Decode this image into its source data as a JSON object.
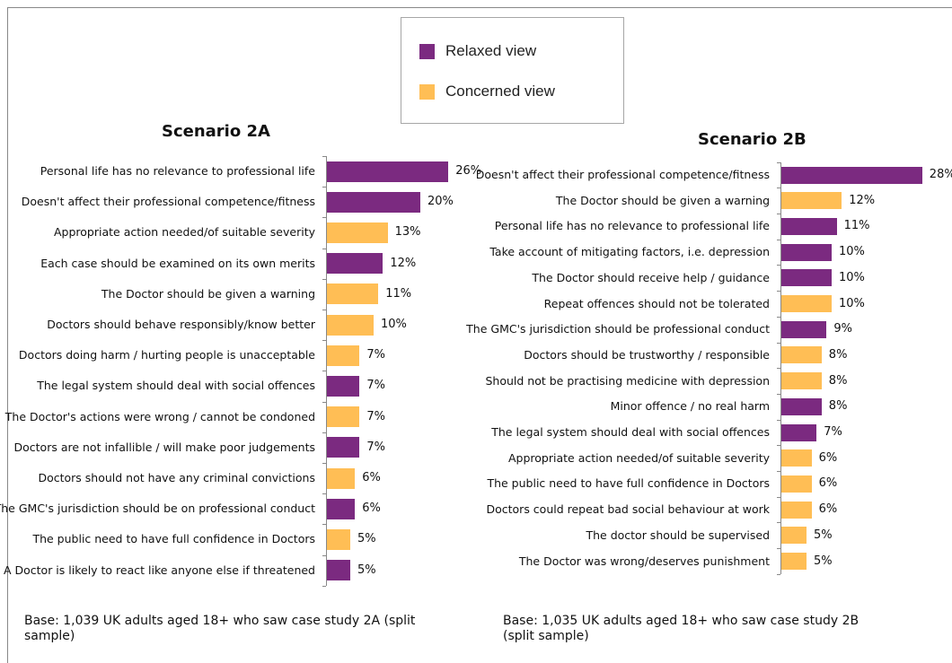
{
  "legend": {
    "relaxed": {
      "label": "Relaxed view",
      "color": "#7b2a80"
    },
    "concerned": {
      "label": "Concerned view",
      "color": "#ffbe55"
    }
  },
  "chart_data": [
    {
      "type": "bar",
      "orientation": "horizontal",
      "title": "Scenario 2A",
      "unit": "%",
      "categories": [
        "Personal life has no relevance to professional life",
        "Doesn't affect their professional competence/fitness",
        "Appropriate action needed/of suitable severity",
        "Each case should be examined on its own merits",
        "The Doctor should be given a warning",
        "Doctors should behave responsibly/know better",
        "Doctors doing harm / hurting people is unacceptable",
        "The legal system should deal with social offences",
        "The Doctor's actions were wrong / cannot be condoned",
        "Doctors are not infallible / will make poor judgements",
        "Doctors should not have any criminal convictions",
        "The GMC's jurisdiction should be on professional conduct",
        "The public need to have full confidence in Doctors",
        "A Doctor is likely to react like anyone else if threatened"
      ],
      "values": [
        26,
        20,
        13,
        12,
        11,
        10,
        7,
        7,
        7,
        7,
        6,
        6,
        5,
        5
      ],
      "views": [
        "relaxed",
        "relaxed",
        "concerned",
        "relaxed",
        "concerned",
        "concerned",
        "concerned",
        "relaxed",
        "concerned",
        "relaxed",
        "concerned",
        "relaxed",
        "concerned",
        "relaxed"
      ],
      "note": "Base: 1,039 UK adults aged 18+ who saw case study 2A (split sample)"
    },
    {
      "type": "bar",
      "orientation": "horizontal",
      "title": "Scenario 2B",
      "unit": "%",
      "categories": [
        "Doesn't affect their professional competence/fitness",
        "The Doctor should be given a warning",
        "Personal life has no relevance to professional life",
        "Take account of mitigating factors, i.e. depression",
        "The Doctor should receive help / guidance",
        "Repeat offences should not be tolerated",
        "The GMC's jurisdiction should be professional conduct",
        "Doctors should be trustworthy / responsible",
        "Should not be practising medicine with depression",
        "Minor offence / no real harm",
        "The legal system should deal with social offences",
        "Appropriate action needed/of suitable severity",
        "The public need to have full confidence in Doctors",
        "Doctors could repeat bad social behaviour at work",
        "The doctor should be supervised",
        "The Doctor was wrong/deserves punishment"
      ],
      "values": [
        28,
        12,
        11,
        10,
        10,
        10,
        9,
        8,
        8,
        8,
        7,
        6,
        6,
        6,
        5,
        5
      ],
      "views": [
        "relaxed",
        "concerned",
        "relaxed",
        "relaxed",
        "relaxed",
        "concerned",
        "relaxed",
        "concerned",
        "concerned",
        "relaxed",
        "relaxed",
        "concerned",
        "concerned",
        "concerned",
        "concerned",
        "concerned"
      ],
      "note": "Base: 1,035 UK adults aged 18+ who saw case study 2B (split sample)"
    }
  ]
}
